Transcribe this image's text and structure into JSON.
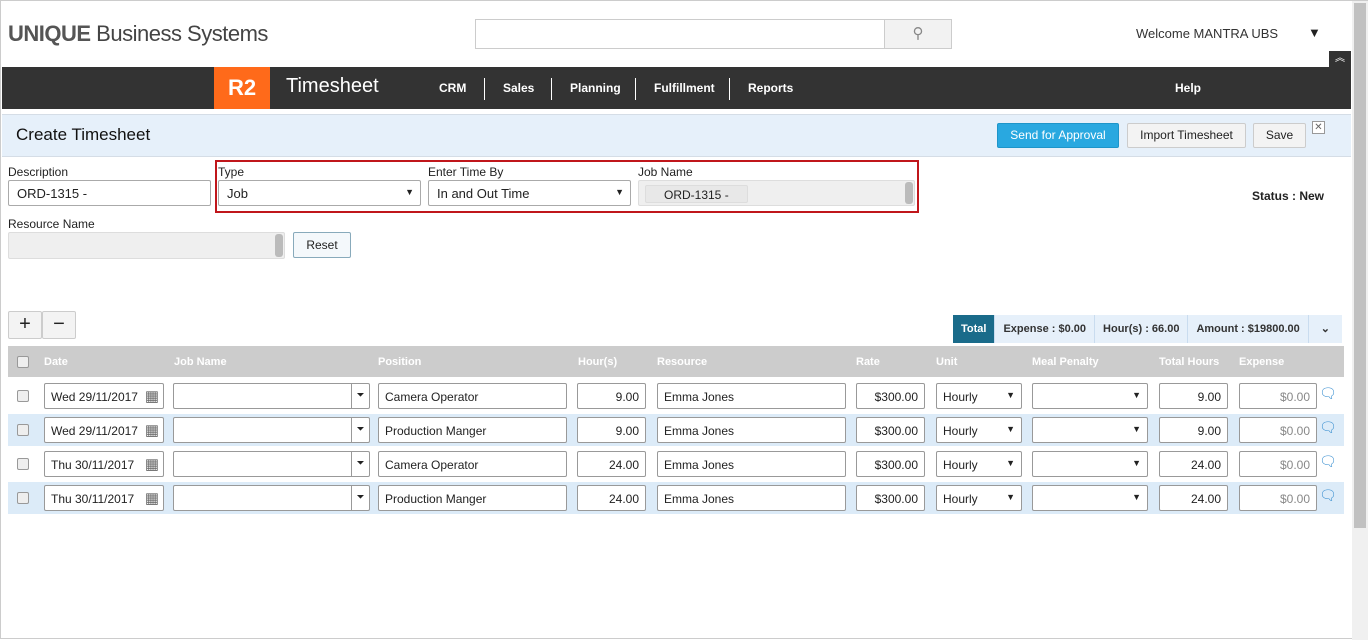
{
  "header": {
    "logo_bold": "UNIQUE",
    "logo_rest": " Business Systems",
    "welcome": "Welcome MANTRA UBS",
    "search_placeholder": ""
  },
  "nav": {
    "badge": "R2",
    "app_title": "Timesheet",
    "items": [
      "CRM",
      "Sales",
      "Planning",
      "Fulfillment",
      "Reports"
    ],
    "help": "Help"
  },
  "page": {
    "title": "Create Timesheet",
    "send_label": "Send for Approval",
    "import_label": "Import Timesheet",
    "save_label": "Save"
  },
  "form": {
    "description_label": "Description",
    "description_value": "ORD-1315 -",
    "type_label": "Type",
    "type_value": "Job",
    "enter_time_label": "Enter Time By",
    "enter_time_value": "In and Out Time",
    "job_name_label": "Job Name",
    "job_name_tag": "ORD-1315 -",
    "status": "Status : New",
    "resource_label": "Resource Name",
    "reset_label": "Reset"
  },
  "totals": {
    "label": "Total",
    "expense": "Expense : $0.00",
    "hours": "Hour(s) : 66.00",
    "amount": "Amount : $19800.00"
  },
  "columns": [
    "Date",
    "Job Name",
    "Position",
    "Hour(s)",
    "Resource",
    "Rate",
    "Unit",
    "Meal Penalty",
    "Total Hours",
    "Expense"
  ],
  "rows": [
    {
      "date": "Wed 29/11/2017",
      "job": "",
      "position": "Camera Operator",
      "hours": "9.00",
      "resource": "Emma Jones",
      "rate": "$300.00",
      "unit": "Hourly",
      "meal": "",
      "total": "9.00",
      "expense": "$0.00"
    },
    {
      "date": "Wed 29/11/2017",
      "job": "",
      "position": "Production Manger",
      "hours": "9.00",
      "resource": "Emma Jones",
      "rate": "$300.00",
      "unit": "Hourly",
      "meal": "",
      "total": "9.00",
      "expense": "$0.00"
    },
    {
      "date": "Thu 30/11/2017",
      "job": "",
      "position": "Camera Operator",
      "hours": "24.00",
      "resource": "Emma Jones",
      "rate": "$300.00",
      "unit": "Hourly",
      "meal": "",
      "total": "24.00",
      "expense": "$0.00"
    },
    {
      "date": "Thu 30/11/2017",
      "job": "",
      "position": "Production Manger",
      "hours": "24.00",
      "resource": "Emma Jones",
      "rate": "$300.00",
      "unit": "Hourly",
      "meal": "",
      "total": "24.00",
      "expense": "$0.00"
    }
  ]
}
